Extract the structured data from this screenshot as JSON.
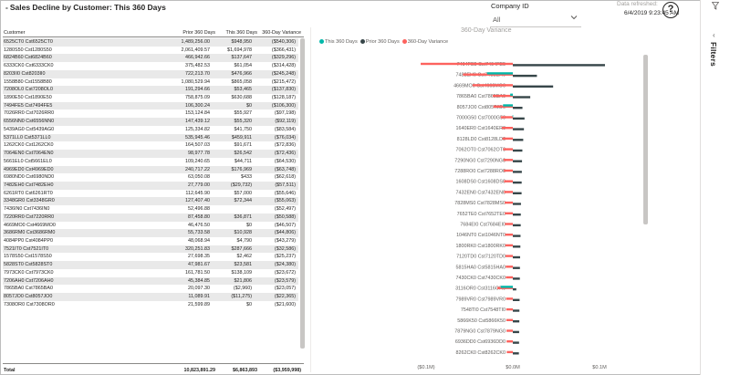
{
  "header": {
    "title": "Sales Decline by Customer: This 360 Days",
    "company_label": "Company ID",
    "company_value": "All",
    "refresh_label": "Data refreshed:",
    "refresh_value": "6/4/2019 9:23:45 AM",
    "help_glyph": "?"
  },
  "filters": {
    "label": "Filters"
  },
  "table": {
    "columns": [
      "Customer",
      "Prior 360 Days",
      "This 360 Days",
      "360-Day Variance"
    ],
    "rows": [
      [
        "6525CT0 Cst6525CT0",
        "1,489,256.00",
        "$948,950",
        "($540,306)"
      ],
      [
        "1280S50 Cst1280S50",
        "2,061,409.57",
        "$1,694,978",
        "($366,431)"
      ],
      [
        "6824B60 Cst6824B60",
        "466,942.66",
        "$137,647",
        "($329,296)"
      ],
      [
        "6333CK0 Cst6333CK0",
        "375,482.53",
        "$61,054",
        "($314,428)"
      ],
      [
        "8203II0 Cst8203II0",
        "722,213.70",
        "$476,966",
        "($245,248)"
      ],
      [
        "1558B80 Cst1558B80",
        "1,080,529.94",
        "$865,058",
        "($215,472)"
      ],
      [
        "7208OL0 Cst7208OL0",
        "191,294.66",
        "$53,465",
        "($137,830)"
      ],
      [
        "1890E50 Cst1890E50",
        "758,875.09",
        "$630,688",
        "($128,187)"
      ],
      [
        "7494FE5 Cst7494FE5",
        "106,300.24",
        "$0",
        "($106,300)"
      ],
      [
        "7026RR0 Cst7026RR0",
        "153,124.84",
        "$55,927",
        "($97,198)"
      ],
      [
        "6556NN0 Cst6556NN0",
        "147,439.12",
        "$55,320",
        "($92,119)"
      ],
      [
        "5439AG0 Cst5439AG0",
        "125,334.82",
        "$41,750",
        "($83,584)"
      ],
      [
        "5371LL0 Cst5371LL0",
        "535,945.46",
        "$459,911",
        "($76,034)"
      ],
      [
        "1262CK0 Cst1262CK0",
        "164,507.03",
        "$91,671",
        "($72,836)"
      ],
      [
        "7064EN0 Cst7064EN0",
        "98,977.78",
        "$26,542",
        "($72,436)"
      ],
      [
        "5661EL0 Cst5661EL0",
        "109,240.65",
        "$44,711",
        "($64,530)"
      ],
      [
        "4969ED0 Cst4969ED0",
        "240,717.22",
        "$176,969",
        "($63,748)"
      ],
      [
        "6980ND0 Cst6980ND0",
        "63,050.08",
        "$433",
        "($62,618)"
      ],
      [
        "7482EH0 Cst7482EH0",
        "27,779.00",
        "($29,732)",
        "($57,511)"
      ],
      [
        "6261RT0 Cst6261RT0",
        "112,645.90",
        "$57,000",
        "($55,646)"
      ],
      [
        "3348GR0 Cst3348GR0",
        "127,407.40",
        "$72,344",
        "($55,063)"
      ],
      [
        "7436IN0 Cst7436IN0",
        "52,496.88",
        "",
        "($52,497)"
      ],
      [
        "7220RR0 Cst7220RR0",
        "87,458.80",
        "$36,871",
        "($50,588)"
      ],
      [
        "4669MO0 Cst4669MO0",
        "46,476.50",
        "$0",
        "($46,507)"
      ],
      [
        "3686RM0 Cst3686RM0",
        "55,733.58",
        "$10,928",
        "($44,806)"
      ],
      [
        "4084PP0 Cst4084PP0",
        "48,068.94",
        "$4,790",
        "($43,279)"
      ],
      [
        "7521IT0 Cst7521IT0",
        "320,251.83",
        "$287,666",
        "($32,586)"
      ],
      [
        "1578S50 Cst1578S50",
        "27,698.35",
        "$2,462",
        "($25,237)"
      ],
      [
        "5828ST0 Cst5828ST0",
        "47,981.67",
        "$23,581",
        "($24,380)"
      ],
      [
        "7973CK0 Cst7973CK0",
        "161,781.50",
        "$138,109",
        "($23,672)"
      ],
      [
        "7206AH0 Cst7206AH0",
        "45,384.85",
        "$21,806",
        "($23,579)"
      ],
      [
        "7865BA0 Cst7865BA0",
        "20,097.30",
        "($2,960)",
        "($23,057)"
      ],
      [
        "8057JO0 Cst8057JO0",
        "11,089.91",
        "($11,275)",
        "($22,365)"
      ],
      [
        "7308OR0 Cst7308OR0",
        "21,599.89",
        "$0",
        "($21,600)"
      ]
    ],
    "total": [
      "Total",
      "10,823,891.29",
      "$6,863,893",
      "($3,959,998)"
    ]
  },
  "chart_data": {
    "type": "bar",
    "title": "360-Day Variance",
    "orientation": "horizontal",
    "xlabel": "",
    "ylabel": "",
    "xlim": [
      -0.1,
      0.1
    ],
    "x_unit": "$M",
    "x_ticks": [
      "($0.1M)",
      "$0.0M",
      "$0.1M"
    ],
    "legend": [
      {
        "name": "This 360 Days",
        "color": "#01b8aa"
      },
      {
        "name": "Prior 360 Days",
        "color": "#374649"
      },
      {
        "name": "360-Day Variance",
        "color": "#fd625e"
      }
    ],
    "legend_position": "top-left",
    "categories": [
      "7494FE5 Cst7494FE5",
      "7482EH0 Cst7482EH0",
      "4669MO0 Cst4669MO0",
      "7865BA0 Cst7865BA0",
      "8057JO0 Cst8057JO0",
      "7000G50 Cst7000G50",
      "1640ER0 Cst1640ER0",
      "8128LD0 Cst8128LD0",
      "7062OT0 Cst7062OT0",
      "7290NG0 Cst7290NG0",
      "7288RO0 Cst7288RO0",
      "1608DS0 Cst1608DS0",
      "7432EN0 Cst7432EN0",
      "7828MS0 Cst7828MS0",
      "7652TE0 Cst7652TE0",
      "7684EI0 Cst7684EI0",
      "1046NT0 Cst1046NT0",
      "1800RK0 Cst1800RK0",
      "7120TD0 Cst7120TD0",
      "5815HA0 Cst5815HA0",
      "7430CK0 Cst7430CK0",
      "3116OR0 Cst3116OR0",
      "7989VR0 Cst7989VR0",
      "7548TI0 Cst7548TI0",
      "5866K50 Cst5866K50",
      "7879NG0 Cst7879NG0",
      "6936DD0 Cst6936DD0",
      "8262CK0 Cst8262CK0"
    ],
    "series": [
      {
        "name": "This 360 Days",
        "values": [
          0.0,
          -0.0297,
          0.0,
          -0.003,
          -0.0113,
          -0.0003,
          0.0,
          0.0,
          0.0,
          0.0,
          0.0,
          0.0,
          0.0,
          0.0,
          0.0,
          0.0,
          0.0,
          0.0,
          0.0,
          0.0,
          0.0,
          -0.014,
          0.0,
          0.0,
          0.0,
          0.0,
          0.0,
          0.0
        ]
      },
      {
        "name": "Prior 360 Days",
        "values": [
          0.1063,
          0.0278,
          0.0465,
          0.0201,
          0.0111,
          0.0135,
          0.0128,
          0.012,
          0.011,
          0.0106,
          0.0104,
          0.0102,
          0.0101,
          0.0094,
          0.0092,
          0.0091,
          0.0089,
          0.0087,
          0.0084,
          0.0082,
          0.0081,
          0.004,
          0.0078,
          0.0076,
          0.0075,
          0.0073,
          0.0072,
          0.007
        ]
      },
      {
        "name": "360-Day Variance",
        "values": [
          -0.1063,
          -0.0575,
          -0.0465,
          -0.0231,
          -0.0224,
          -0.0138,
          -0.0128,
          -0.012,
          -0.011,
          -0.0106,
          -0.0104,
          -0.0102,
          -0.0101,
          -0.0094,
          -0.0092,
          -0.0091,
          -0.0089,
          -0.0087,
          -0.0084,
          -0.0082,
          -0.0081,
          -0.018,
          -0.0078,
          -0.0076,
          -0.0075,
          -0.0073,
          -0.0072,
          -0.007
        ]
      }
    ]
  }
}
